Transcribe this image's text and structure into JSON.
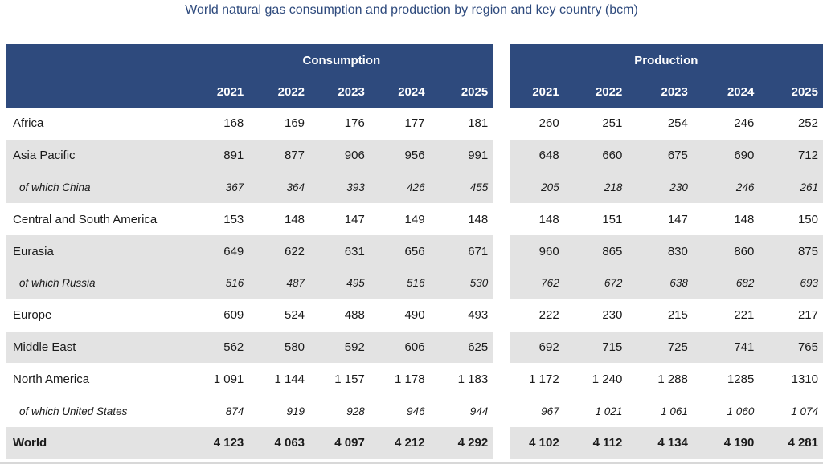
{
  "title": "World natural gas consumption and production by region and key country (bcm)",
  "headers": {
    "consumption": "Consumption",
    "production": "Production",
    "years": [
      "2021",
      "2022",
      "2023",
      "2024",
      "2025"
    ]
  },
  "rows": [
    {
      "label": "Africa",
      "consumption": [
        "168",
        "169",
        "176",
        "177",
        "181"
      ],
      "production": [
        "260",
        "251",
        "254",
        "246",
        "252"
      ]
    },
    {
      "label": "Asia Pacific",
      "consumption": [
        "891",
        "877",
        "906",
        "956",
        "991"
      ],
      "production": [
        "648",
        "660",
        "675",
        "690",
        "712"
      ]
    },
    {
      "label": "of which China",
      "consumption": [
        "367",
        "364",
        "393",
        "426",
        "455"
      ],
      "production": [
        "205",
        "218",
        "230",
        "246",
        "261"
      ]
    },
    {
      "label": "Central and South America",
      "consumption": [
        "153",
        "148",
        "147",
        "149",
        "148"
      ],
      "production": [
        "148",
        "151",
        "147",
        "148",
        "150"
      ]
    },
    {
      "label": "Eurasia",
      "consumption": [
        "649",
        "622",
        "631",
        "656",
        "671"
      ],
      "production": [
        "960",
        "865",
        "830",
        "860",
        "875"
      ]
    },
    {
      "label": "of which Russia",
      "consumption": [
        "516",
        "487",
        "495",
        "516",
        "530"
      ],
      "production": [
        "762",
        "672",
        "638",
        "682",
        "693"
      ]
    },
    {
      "label": "Europe",
      "consumption": [
        "609",
        "524",
        "488",
        "490",
        "493"
      ],
      "production": [
        "222",
        "230",
        "215",
        "221",
        "217"
      ]
    },
    {
      "label": "Middle East",
      "consumption": [
        "562",
        "580",
        "592",
        "606",
        "625"
      ],
      "production": [
        "692",
        "715",
        "725",
        "741",
        "765"
      ]
    },
    {
      "label": "North America",
      "consumption": [
        "1 091",
        "1 144",
        "1 157",
        "1 178",
        "1 183"
      ],
      "production": [
        "1 172",
        "1 240",
        "1 288",
        "1285",
        "1310"
      ]
    },
    {
      "label": "of which United States",
      "consumption": [
        "874",
        "919",
        "928",
        "946",
        "944"
      ],
      "production": [
        "967",
        "1 021",
        "1 061",
        "1 060",
        "1 074"
      ]
    },
    {
      "label": "World",
      "consumption": [
        "4 123",
        "4 063",
        "4 097",
        "4 212",
        "4 292"
      ],
      "production": [
        "4 102",
        "4 112",
        "4 134",
        "4 190",
        "4 281"
      ]
    }
  ]
}
